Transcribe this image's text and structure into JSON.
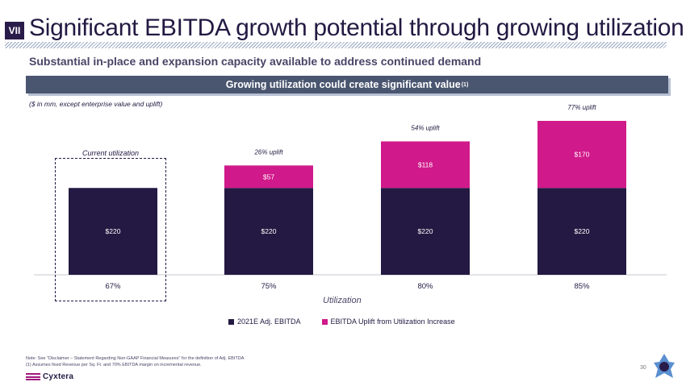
{
  "header": {
    "section": "VII",
    "title": "Significant EBITDA growth potential through growing utilization",
    "subtitle": "Substantial in-place and expansion capacity available to address continued demand"
  },
  "banner": {
    "text": "Growing utilization could create significant value",
    "superscript": "(1)"
  },
  "units_note": "($ in mm, except enterprise value and uplift)",
  "current_utilization_label": "Current utilization",
  "colors": {
    "base": "#231942",
    "uplift": "#d0198a",
    "banner": "#4a5670"
  },
  "chart_data": {
    "type": "bar",
    "stacked": true,
    "categories": [
      "67%",
      "75%",
      "80%",
      "85%"
    ],
    "series": [
      {
        "name": "2021E Adj. EBITDA",
        "values": [
          220,
          220,
          220,
          220
        ],
        "labels": [
          "$220",
          "$220",
          "$220",
          "$220"
        ]
      },
      {
        "name": "EBITDA Uplift from Utilization Increase",
        "values": [
          0,
          57,
          118,
          170
        ],
        "labels": [
          "",
          "$57",
          "$118",
          "$170"
        ]
      }
    ],
    "annotations": [
      "",
      "26% uplift",
      "54% uplift",
      "77% uplift"
    ],
    "xlabel": "Utilization",
    "ylabel": "",
    "ylim": [
      0,
      390
    ],
    "grid": false,
    "legend": "bottom"
  },
  "footnotes": [
    "Note: See \"Disclaimer – Statement Regarding Non-GAAP Financial Measures\" for the definition of Adj. EBITDA",
    "(1) Assumes fixed Revenue per Sq. Ft. and 70% EBITDA margin on incremental revenue."
  ],
  "page_number": "30",
  "brand": {
    "name": "Cyxtera"
  }
}
